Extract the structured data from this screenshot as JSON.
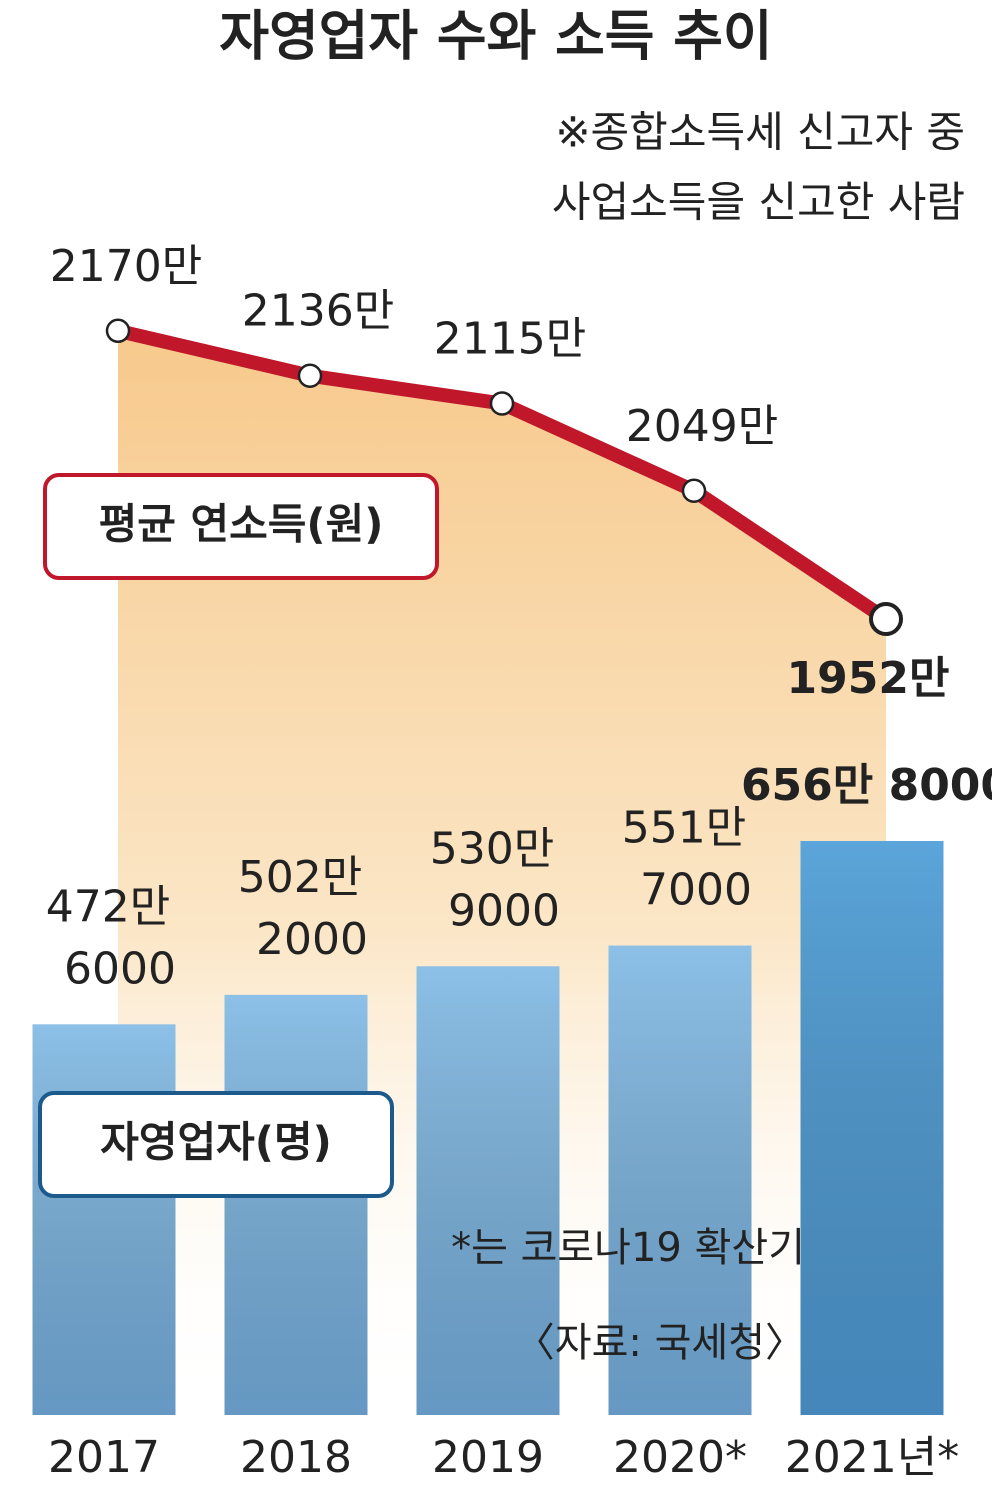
{
  "chart_data": [
    {
      "type": "bar",
      "title": "자영업자 수와 소득 추이",
      "note": [
        "※종합소득세 신고자 중",
        "사업소득을 신고한 사람"
      ],
      "categories": [
        "2017",
        "2018",
        "2019",
        "2020*",
        "2021년*"
      ],
      "series": [
        {
          "name": "자영업자(명)",
          "color": "#8cc0e7",
          "colors": [
            "#8cc0e7",
            "#8cc0e7",
            "#8cc0e7",
            "#8cc0e7",
            "#5aa5da"
          ],
          "values": [
            4726000,
            5022000,
            5309000,
            5517000,
            6568000
          ],
          "value_labels": [
            [
              "472만",
              "6000"
            ],
            [
              "502만",
              "2000"
            ],
            [
              "530만",
              "9000"
            ],
            [
              "551만",
              "7000"
            ],
            [
              "656만 8000"
            ]
          ],
          "value_label_colors": [
            "#222222",
            "#222222",
            "#222222",
            "#222222",
            "#1f5f95"
          ]
        }
      ],
      "ylim": [
        800000,
        7000000
      ],
      "footnote": "*는 코로나19 확산기",
      "source": "〈자료: 국세청〉"
    },
    {
      "type": "line",
      "series": [
        {
          "name": "평균 연소득(원)",
          "color": "#c0182a",
          "values": [
            21700000,
            21360000,
            21150000,
            20490000,
            19520000
          ],
          "value_labels": [
            "2170만",
            "2136만",
            "2115만",
            "2049만",
            "1952만"
          ],
          "value_label_colors": [
            "#222222",
            "#222222",
            "#222222",
            "#222222",
            "#c0182a"
          ]
        }
      ],
      "ylim": [
        18000000,
        22500000
      ]
    }
  ]
}
